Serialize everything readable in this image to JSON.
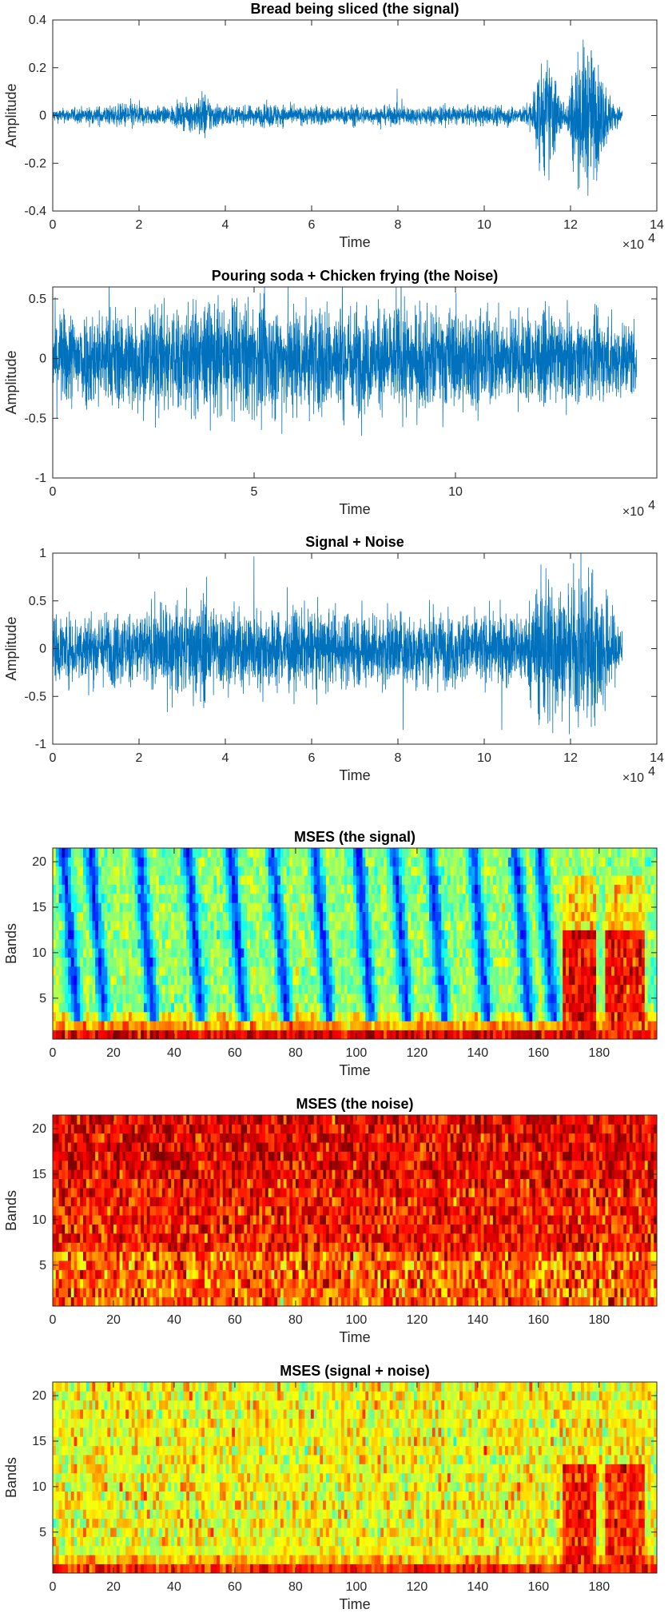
{
  "figure_colors": {
    "waveform": "#0072BD",
    "axes": "#262626",
    "background": "#ffffff"
  },
  "chart_data": [
    {
      "type": "line",
      "title": "Bread being sliced (the signal)",
      "xlabel": "Time",
      "ylabel": "Amplitude",
      "x_exponent": "×10",
      "x_exponent_power": "4",
      "xlim": [
        0,
        140000
      ],
      "ylim": [
        -0.4,
        0.4
      ],
      "xticks": [
        0,
        20000,
        40000,
        60000,
        80000,
        100000,
        120000,
        140000
      ],
      "xtick_labels": [
        "0",
        "2",
        "4",
        "6",
        "8",
        "10",
        "12",
        "14"
      ],
      "yticks": [
        -0.4,
        -0.2,
        0,
        0.2,
        0.4
      ],
      "ytick_labels": [
        "-0.4",
        "-0.2",
        "0",
        "0.2",
        "0.4"
      ],
      "series": [
        {
          "x_end": 132000,
          "envelope": [
            [
              0,
              0.03
            ],
            [
              8000,
              0.04
            ],
            [
              15000,
              0.05
            ],
            [
              18000,
              0.07
            ],
            [
              21000,
              0.05
            ],
            [
              26000,
              0.04
            ],
            [
              30000,
              0.06
            ],
            [
              33000,
              0.08
            ],
            [
              35000,
              0.12
            ],
            [
              37000,
              0.07
            ],
            [
              42000,
              0.04
            ],
            [
              48000,
              0.05
            ],
            [
              52000,
              0.06
            ],
            [
              56000,
              0.04
            ],
            [
              62000,
              0.05
            ],
            [
              66000,
              0.04
            ],
            [
              70000,
              0.05
            ],
            [
              75000,
              0.04
            ],
            [
              80000,
              0.05
            ],
            [
              85000,
              0.04
            ],
            [
              90000,
              0.05
            ],
            [
              95000,
              0.04
            ],
            [
              100000,
              0.05
            ],
            [
              105000,
              0.05
            ],
            [
              109000,
              0.04
            ],
            [
              111000,
              0.08
            ],
            [
              112000,
              0.2
            ],
            [
              114000,
              0.28
            ],
            [
              116000,
              0.24
            ],
            [
              117500,
              0.1
            ],
            [
              119000,
              0.05
            ],
            [
              120000,
              0.18
            ],
            [
              122000,
              0.3
            ],
            [
              124000,
              0.36
            ],
            [
              126000,
              0.28
            ],
            [
              128000,
              0.16
            ],
            [
              130000,
              0.06
            ],
            [
              132000,
              0.03
            ]
          ]
        }
      ]
    },
    {
      "type": "line",
      "title": "Pouring soda + Chicken frying (the Noise)",
      "xlabel": "Time",
      "ylabel": "Amplitude",
      "x_exponent": "×10",
      "x_exponent_power": "4",
      "xlim": [
        0,
        150000
      ],
      "ylim": [
        -1,
        0.6
      ],
      "xticks": [
        0,
        50000,
        100000
      ],
      "xtick_labels": [
        "0",
        "5",
        "10"
      ],
      "yticks": [
        -1,
        -0.5,
        0,
        0.5
      ],
      "ytick_labels": [
        "-1",
        "-0.5",
        "0",
        "0.5"
      ],
      "series": [
        {
          "x_end": 145000,
          "envelope": [
            [
              0,
              0.45
            ],
            [
              20000,
              0.5
            ],
            [
              40000,
              0.55
            ],
            [
              60000,
              0.55
            ],
            [
              80000,
              0.5
            ],
            [
              100000,
              0.48
            ],
            [
              120000,
              0.42
            ],
            [
              145000,
              0.38
            ]
          ]
        }
      ]
    },
    {
      "type": "line",
      "title": "Signal + Noise",
      "xlabel": "Time",
      "ylabel": "Amplitude",
      "x_exponent": "×10",
      "x_exponent_power": "4",
      "xlim": [
        0,
        140000
      ],
      "ylim": [
        -1,
        1
      ],
      "xticks": [
        0,
        20000,
        40000,
        60000,
        80000,
        100000,
        120000,
        140000
      ],
      "xtick_labels": [
        "0",
        "2",
        "4",
        "6",
        "8",
        "10",
        "12",
        "14"
      ],
      "yticks": [
        -1,
        -0.5,
        0,
        0.5,
        1
      ],
      "ytick_labels": [
        "-1",
        "-0.5",
        "0",
        "0.5",
        "1"
      ],
      "series": [
        {
          "x_end": 132000,
          "envelope": [
            [
              0,
              0.4
            ],
            [
              20000,
              0.45
            ],
            [
              33000,
              0.55
            ],
            [
              35000,
              0.7
            ],
            [
              38000,
              0.5
            ],
            [
              60000,
              0.45
            ],
            [
              80000,
              0.45
            ],
            [
              100000,
              0.42
            ],
            [
              110000,
              0.45
            ],
            [
              112000,
              0.8
            ],
            [
              114000,
              1.0
            ],
            [
              117000,
              0.9
            ],
            [
              119000,
              0.5
            ],
            [
              121000,
              0.9
            ],
            [
              124000,
              1.0
            ],
            [
              128000,
              0.7
            ],
            [
              130000,
              0.45
            ],
            [
              132000,
              0.3
            ]
          ]
        }
      ]
    },
    {
      "type": "heatmap",
      "title": "MSES (the signal)",
      "xlabel": "Time",
      "ylabel": "Bands",
      "xlim": [
        0,
        199
      ],
      "ylim": [
        0.5,
        21.5
      ],
      "n_time": 199,
      "n_bands": 21,
      "colormap": "jet",
      "xticks": [
        0,
        20,
        40,
        60,
        80,
        100,
        120,
        140,
        160,
        180
      ],
      "xtick_labels": [
        "0",
        "20",
        "40",
        "60",
        "80",
        "100",
        "120",
        "140",
        "160",
        "180"
      ],
      "yticks": [
        5,
        10,
        15,
        20
      ],
      "ytick_labels": [
        "5",
        "10",
        "15",
        "20"
      ],
      "pattern": {
        "base": 0.52,
        "low_bands_level": [
          0.9,
          0.72,
          0.66
        ],
        "dark_stripes_x": [
          3,
          12,
          28,
          44,
          58,
          72,
          86,
          100,
          112,
          124,
          138,
          152,
          160
        ],
        "stripe_level": 0.14,
        "bright_regions": [
          {
            "x": [
              168,
              178
            ],
            "level": 0.88
          },
          {
            "x": [
              182,
              194
            ],
            "level": 0.86
          }
        ]
      }
    },
    {
      "type": "heatmap",
      "title": "MSES (the noise)",
      "xlabel": "Time",
      "ylabel": "Bands",
      "xlim": [
        0,
        199
      ],
      "ylim": [
        0.5,
        21.5
      ],
      "n_time": 199,
      "n_bands": 21,
      "colormap": "jet",
      "xticks": [
        0,
        20,
        40,
        60,
        80,
        100,
        120,
        140,
        160,
        180
      ],
      "xtick_labels": [
        "0",
        "20",
        "40",
        "60",
        "80",
        "100",
        "120",
        "140",
        "160",
        "180"
      ],
      "yticks": [
        5,
        10,
        15,
        20
      ],
      "ytick_labels": [
        "5",
        "10",
        "15",
        "20"
      ],
      "pattern": {
        "base": 0.86,
        "top_band_level": 0.9,
        "low_bands_level": 0.78,
        "variation": 0.08
      }
    },
    {
      "type": "heatmap",
      "title": "MSES (signal + noise)",
      "xlabel": "Time",
      "ylabel": "Bands",
      "xlim": [
        0,
        199
      ],
      "ylim": [
        0.5,
        21.5
      ],
      "n_time": 199,
      "n_bands": 21,
      "colormap": "jet",
      "xticks": [
        0,
        20,
        40,
        60,
        80,
        100,
        120,
        140,
        160,
        180
      ],
      "xtick_labels": [
        "0",
        "20",
        "40",
        "60",
        "80",
        "100",
        "120",
        "140",
        "160",
        "180"
      ],
      "yticks": [
        5,
        10,
        15,
        20
      ],
      "ytick_labels": [
        "5",
        "10",
        "15",
        "20"
      ],
      "pattern": {
        "base": 0.62,
        "low_bands_level": [
          0.84,
          0.7,
          0.6
        ],
        "variation": 0.08,
        "bright_regions": [
          {
            "x": [
              168,
              178
            ],
            "level": 0.86
          },
          {
            "x": [
              182,
              194
            ],
            "level": 0.84
          }
        ]
      }
    }
  ]
}
